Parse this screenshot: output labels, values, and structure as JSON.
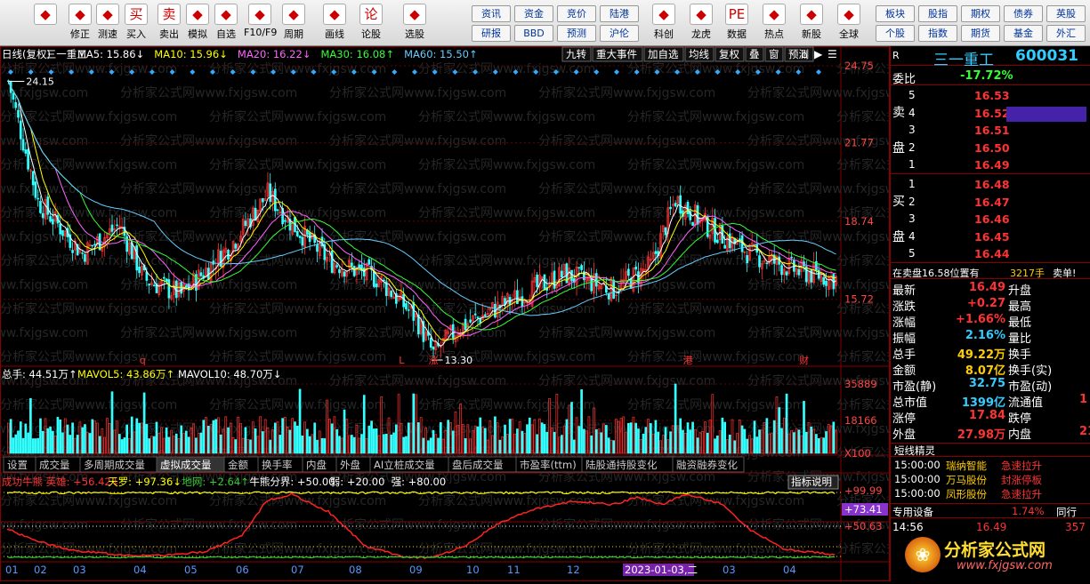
{
  "toolbar": {
    "big": [
      {
        "label": "",
        "icon": "back-arrow-icon"
      },
      {
        "label": "修正",
        "icon": "up-down-icon"
      },
      {
        "label": "测速",
        "icon": "clock-icon"
      },
      {
        "label": "买入",
        "icon": "buy-icon",
        "glyph": "买"
      },
      {
        "label": "卖出",
        "icon": "sell-icon",
        "glyph": "卖"
      },
      {
        "label": "模拟",
        "icon": "hammer-icon"
      },
      {
        "label": "自选",
        "icon": "star-icon"
      },
      {
        "label": "F10/F9",
        "icon": "doc-icon"
      },
      {
        "label": "周期",
        "icon": "period-icon"
      },
      {
        "label": "画线",
        "icon": "pen-icon"
      },
      {
        "label": "论股",
        "icon": "lungu-icon",
        "glyph": "论"
      },
      {
        "label": "选股",
        "icon": "select-icon"
      }
    ],
    "small_left": [
      [
        "资讯",
        "资金",
        "竞价",
        "陆港"
      ],
      [
        "研报",
        "BBD",
        "预测",
        "沪伦"
      ]
    ],
    "big2": [
      {
        "label": "科创",
        "icon": "kechuang-icon"
      },
      {
        "label": "龙虎",
        "icon": "dragon-icon"
      },
      {
        "label": "数据",
        "icon": "pe-icon",
        "glyph": "PE"
      },
      {
        "label": "热点",
        "icon": "fire-icon"
      },
      {
        "label": "新股",
        "icon": "newstock-icon"
      },
      {
        "label": "全球",
        "icon": "globe-icon"
      }
    ],
    "small_right": [
      [
        "板块",
        "股指",
        "期权",
        "债券",
        "英股"
      ],
      [
        "个股",
        "指数",
        "期货",
        "基金",
        "外汇"
      ]
    ]
  },
  "main": {
    "legend": [
      {
        "t": "日线(复权)",
        "c": "#fff"
      },
      {
        "t": "三一重工",
        "c": "#fff"
      },
      {
        "t": "MA5: 15.86↓",
        "c": "#fff"
      },
      {
        "t": "MA10: 15.96↓",
        "c": "#ffff00"
      },
      {
        "t": "MA20: 16.22↓",
        "c": "#ff66ff"
      },
      {
        "t": "MA30: 16.08↑",
        "c": "#33ff33"
      },
      {
        "t": "MA60: 15.50↑",
        "c": "#66ccff"
      }
    ],
    "buttons": [
      "九转",
      "重大事件",
      "加自选",
      "均线",
      "复权",
      "叠",
      "窗",
      "预测"
    ],
    "yticks": [
      "24.75",
      "21.77",
      "18.74",
      "15.72"
    ],
    "high_label": "24.15",
    "low_label": "13.30",
    "markers": [
      "q",
      "L",
      "涨",
      "港",
      "财"
    ]
  },
  "volume": {
    "legend": [
      {
        "t": "总手: 44.51万↑",
        "c": "#fff"
      },
      {
        "t": "MAVOL5: 43.86万↑",
        "c": "#ffff00"
      },
      {
        "t": "MAVOL10: 48.70万↓",
        "c": "#fff"
      }
    ],
    "yticks": [
      "35889",
      "18166",
      "X100"
    ]
  },
  "tabs": [
    "设置",
    "成交量",
    "多周期成交量",
    "虚拟成交量",
    "金额",
    "换手率",
    "内盘",
    "外盘",
    "AI立桩成交量",
    "盘后成交量",
    "市盈率(ttm)",
    "陆股通持股变化",
    "融资融券变化"
  ],
  "indicator": {
    "legend": [
      {
        "t": "成功牛熊 英雄: +56.42↓",
        "c": "#ff3333"
      },
      {
        "t": "天罗: +97.36↓",
        "c": "#ffff00"
      },
      {
        "t": "地网: +2.64↑",
        "c": "#33cc33"
      },
      {
        "t": "牛熊分界: +50.00",
        "c": "#fff"
      },
      {
        "t": "弱: +20.00",
        "c": "#fff"
      },
      {
        "t": "强: +80.00",
        "c": "#fff"
      }
    ],
    "button": "指标说明",
    "yticks": [
      "+99.99",
      "+73.41",
      "+50.63"
    ]
  },
  "xaxis": {
    "months": [
      "01",
      "02",
      "03",
      "04",
      "05",
      "06",
      "07",
      "08",
      "09",
      "10",
      "11",
      "12",
      "2023-01-03,二",
      "03",
      "04"
    ]
  },
  "watermark": "分析家公式网www.fxjgsw.com",
  "quote": {
    "name": "三一重工",
    "code": "600031",
    "r": "R",
    "webi_label": "委比",
    "webi": "-17.72%",
    "sell_label": [
      "卖",
      "盘"
    ],
    "buy_label": [
      "买",
      "盘"
    ],
    "sells": [
      [
        "5",
        "16.53"
      ],
      [
        "4",
        "16.52"
      ],
      [
        "3",
        "16.51"
      ],
      [
        "2",
        "16.50"
      ],
      [
        "1",
        "16.49"
      ]
    ],
    "buys": [
      [
        "1",
        "16.48"
      ],
      [
        "2",
        "16.47"
      ],
      [
        "3",
        "16.46"
      ],
      [
        "4",
        "16.45"
      ],
      [
        "5",
        "16.44"
      ]
    ],
    "status": [
      "在卖盘16.58位置有",
      "3217手",
      "卖单!"
    ],
    "stats": [
      [
        "最新",
        "16.49",
        "升盘",
        ""
      ],
      [
        "涨跌",
        "+0.27",
        "最高",
        ""
      ],
      [
        "涨幅",
        "+1.66%",
        "最低",
        ""
      ],
      [
        "振幅",
        "2.16%",
        "量比",
        ""
      ],
      [
        "总手",
        "49.22万",
        "换手",
        ""
      ],
      [
        "金额",
        "8.07亿",
        "换手(实)",
        ""
      ],
      [
        "市盈(静)",
        "32.75",
        "市盈(动)",
        ""
      ],
      [
        "总市值",
        "1399亿",
        "流通值",
        "1"
      ],
      [
        "涨停",
        "17.84",
        "跌停",
        ""
      ],
      [
        "外盘",
        "27.98万",
        "内盘",
        "21"
      ]
    ],
    "sprite_title": "短线精灵",
    "sprite": [
      [
        "15:00:00",
        "瑞纳智能",
        "急速拉升"
      ],
      [
        "15:00:00",
        "万马股份",
        "封涨停板"
      ],
      [
        "15:00:00",
        "凤形股份",
        "急速拉升"
      ]
    ],
    "special": [
      "专用设备",
      "1.74%",
      "同行"
    ],
    "bottom": [
      "14:56",
      "16.49",
      "357"
    ],
    "brand": "分析家公式网",
    "brand_url": "www.fxjgsw.com"
  },
  "chart_data": {
    "type": "candlestick",
    "title": "三一重工 日线(复权)",
    "high": 24.15,
    "low": 13.3,
    "ylim": [
      13.3,
      24.75
    ],
    "ma": {
      "MA5": 15.86,
      "MA10": 15.96,
      "MA20": 16.22,
      "MA30": 16.08,
      "MA60": 15.5
    },
    "price_path": [
      [
        0,
        24.15
      ],
      [
        12,
        19.5
      ],
      [
        30,
        17.5
      ],
      [
        45,
        18.6
      ],
      [
        55,
        16.5
      ],
      [
        70,
        15.9
      ],
      [
        90,
        17.8
      ],
      [
        105,
        19.8
      ],
      [
        115,
        18.6
      ],
      [
        130,
        17.2
      ],
      [
        150,
        16.5
      ],
      [
        165,
        15.0
      ],
      [
        172,
        13.6
      ],
      [
        182,
        14.6
      ],
      [
        200,
        15.5
      ],
      [
        225,
        16.7
      ],
      [
        245,
        16.1
      ],
      [
        260,
        17.0
      ],
      [
        270,
        19.6
      ],
      [
        282,
        18.6
      ],
      [
        300,
        17.5
      ],
      [
        320,
        16.8
      ],
      [
        335,
        16.5
      ]
    ],
    "colors": {
      "up": "#ff3333",
      "down": "#33ffff",
      "ma5": "#ffffff",
      "ma10": "#ffff00",
      "ma20": "#ff66ff",
      "ma30": "#33ff33",
      "ma60": "#66ccff"
    }
  }
}
